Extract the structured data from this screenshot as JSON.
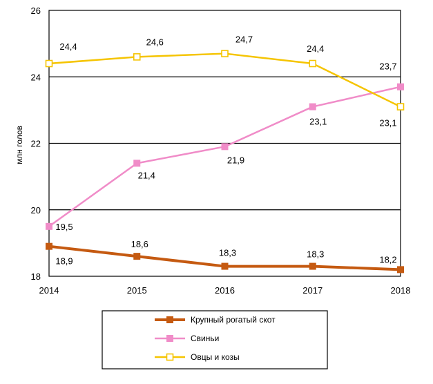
{
  "chart_data": {
    "type": "line",
    "title": "",
    "xlabel": "",
    "ylabel": "млн голов",
    "x": [
      "2014",
      "2015",
      "2016",
      "2017",
      "2018"
    ],
    "ylim": [
      18,
      26
    ],
    "yticks": [
      "18",
      "20",
      "22",
      "24",
      "26"
    ],
    "grid": "horizontal",
    "legend_position": "bottom-center",
    "series": [
      {
        "name": "Крупный рогатый скот",
        "color": "#c55a11",
        "marker": "square-filled",
        "values": [
          18.9,
          18.6,
          18.3,
          18.3,
          18.2
        ],
        "labels": [
          "18,9",
          "18,6",
          "18,3",
          "18,3",
          "18,2"
        ]
      },
      {
        "name": "Свиньи",
        "color": "#f08cc8",
        "marker": "square-filled",
        "values": [
          19.5,
          21.4,
          21.9,
          23.1,
          23.7
        ],
        "labels": [
          "19,5",
          "21,4",
          "21,9",
          "23,1",
          "23,7"
        ]
      },
      {
        "name": "Овцы и козы",
        "color": "#f5c400",
        "marker": "square-hollow",
        "values": [
          24.4,
          24.6,
          24.7,
          24.4,
          23.1
        ],
        "labels": [
          "24,4",
          "24,6",
          "24,7",
          "24,4",
          "23,1"
        ]
      }
    ]
  }
}
